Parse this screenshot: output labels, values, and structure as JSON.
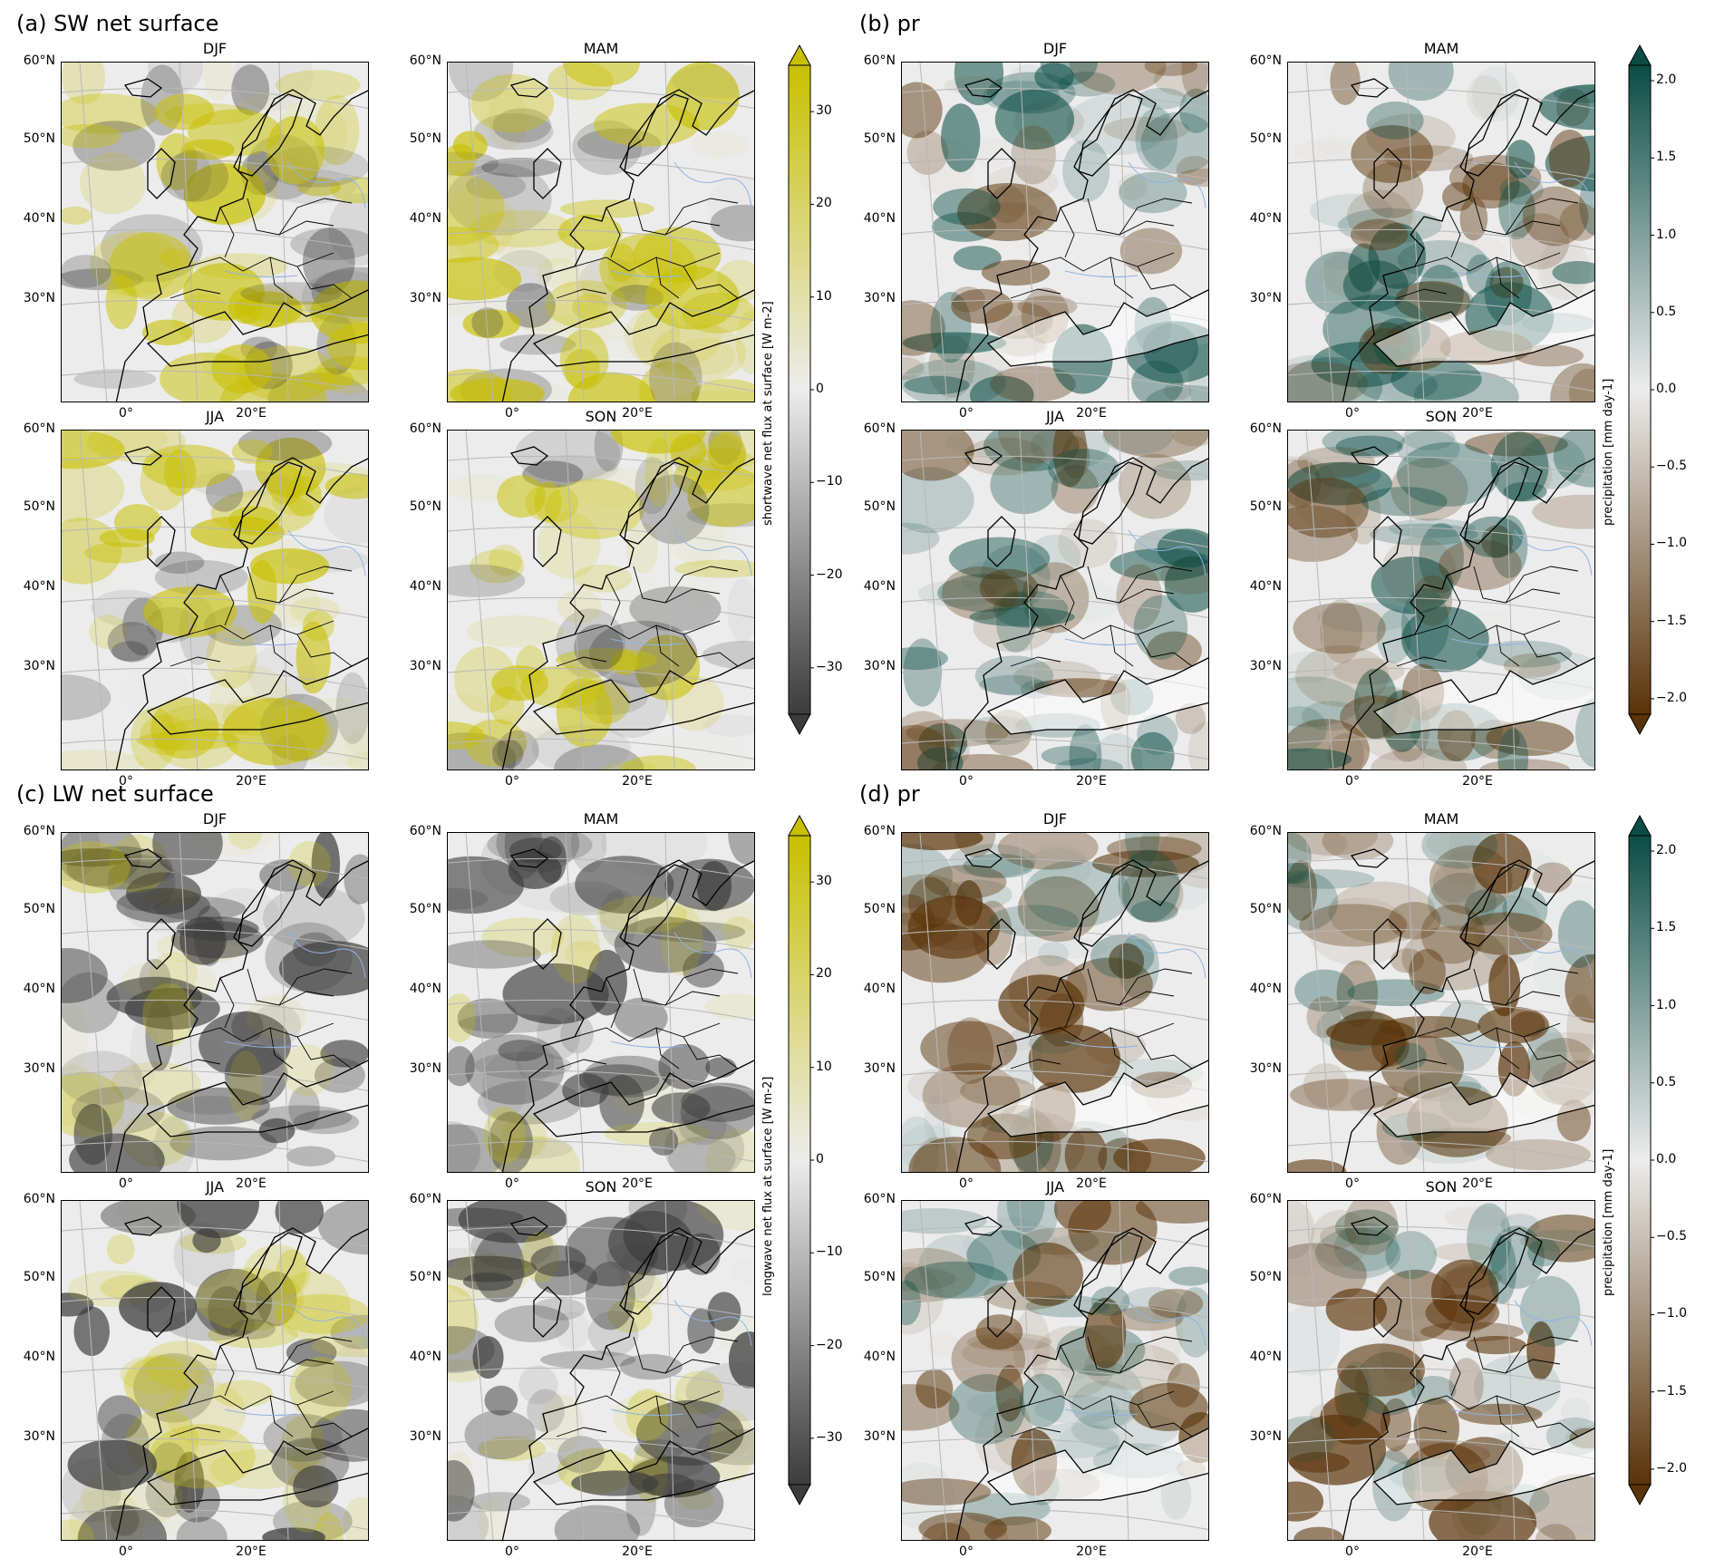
{
  "panels": [
    {
      "id": "a",
      "title": "(a) SW net surface",
      "colormap": "sw",
      "colorbar": {
        "label": "shortwave net flux at surface [W m-2]",
        "ticks": [
          "30",
          "20",
          "10",
          "0",
          "−10",
          "−20",
          "−30"
        ],
        "range": [
          -35,
          35
        ]
      }
    },
    {
      "id": "b",
      "title": "(b) pr",
      "colormap": "pr",
      "colorbar": {
        "label": "precipitation [mm day-1]",
        "ticks": [
          "2.0",
          "1.5",
          "1.0",
          "0.5",
          "0.0",
          "−0.5",
          "−1.0",
          "−1.5",
          "−2.0"
        ],
        "range": [
          -2.1,
          2.1
        ]
      }
    },
    {
      "id": "c",
      "title": "(c) LW net surface",
      "colormap": "sw",
      "colorbar": {
        "label": "longwave net flux at surface [W m-2]",
        "ticks": [
          "30",
          "20",
          "10",
          "0",
          "−10",
          "−20",
          "−30"
        ],
        "range": [
          -35,
          35
        ]
      }
    },
    {
      "id": "d",
      "title": "(d) pr",
      "colormap": "pr",
      "colorbar": {
        "label": "precipitation [mm day-1]",
        "ticks": [
          "2.0",
          "1.5",
          "1.0",
          "0.5",
          "0.0",
          "−0.5",
          "−1.0",
          "−1.5",
          "−2.0"
        ],
        "range": [
          -2.1,
          2.1
        ]
      }
    }
  ],
  "seasons": [
    "DJF",
    "MAM",
    "JJA",
    "SON"
  ],
  "lat_labels": [
    "60°N",
    "50°N",
    "40°N",
    "30°N"
  ],
  "lon_labels": [
    "0°",
    "20°E"
  ],
  "colors": {
    "sw_positive": "#c8c000",
    "sw_zero": "#ececec",
    "sw_negative": "#3c3c3c",
    "pr_positive": "#0b4d45",
    "pr_zero": "#ececec",
    "pr_negative": "#5a3308"
  },
  "chart_data": [
    {
      "type": "heatmap",
      "title": "(a) SW net surface",
      "subplots": [
        "DJF",
        "MAM",
        "JJA",
        "SON"
      ],
      "colorbar_label": "shortwave net flux at surface [W m-2]",
      "colorbar_range": [
        -35,
        35
      ],
      "colorbar_ticks": [
        30,
        20,
        10,
        0,
        -10,
        -20,
        -30
      ]
    },
    {
      "type": "heatmap",
      "title": "(b) pr",
      "subplots": [
        "DJF",
        "MAM",
        "JJA",
        "SON"
      ],
      "colorbar_label": "precipitation [mm day-1]",
      "colorbar_range": [
        -2.1,
        2.1
      ],
      "colorbar_ticks": [
        2.0,
        1.5,
        1.0,
        0.5,
        0.0,
        -0.5,
        -1.0,
        -1.5,
        -2.0
      ]
    },
    {
      "type": "heatmap",
      "title": "(c) LW net surface",
      "subplots": [
        "DJF",
        "MAM",
        "JJA",
        "SON"
      ],
      "colorbar_label": "longwave net flux at surface [W m-2]",
      "colorbar_range": [
        -35,
        35
      ],
      "colorbar_ticks": [
        30,
        20,
        10,
        0,
        -10,
        -20,
        -30
      ]
    },
    {
      "type": "heatmap",
      "title": "(d) pr",
      "subplots": [
        "DJF",
        "MAM",
        "JJA",
        "SON"
      ],
      "colorbar_label": "precipitation [mm day-1]",
      "colorbar_range": [
        -2.1,
        2.1
      ],
      "colorbar_ticks": [
        2.0,
        1.5,
        1.0,
        0.5,
        0.0,
        -0.5,
        -1.0,
        -1.5,
        -2.0
      ]
    }
  ]
}
